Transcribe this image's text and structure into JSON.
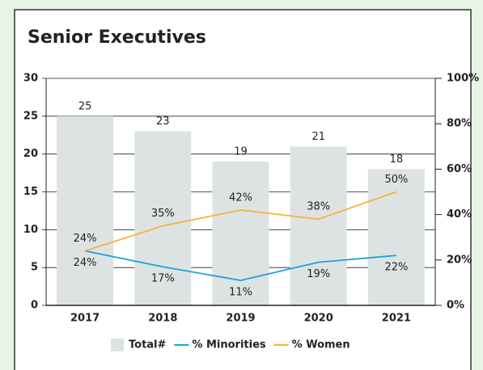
{
  "chart_data": {
    "type": "bar",
    "title": "Senior Executives",
    "categories": [
      "2017",
      "2018",
      "2019",
      "2020",
      "2021"
    ],
    "series": [
      {
        "name": "Total#",
        "type": "bar",
        "color": "#dde3e3",
        "values": [
          25,
          23,
          19,
          21,
          18
        ]
      },
      {
        "name": "% Minorities",
        "type": "line",
        "axis": "y2",
        "color": "#1aa3dd",
        "values": [
          24,
          17,
          11,
          19,
          22
        ],
        "value_labels": [
          "24%",
          "17%",
          "11%",
          "19%",
          "22%"
        ]
      },
      {
        "name": "% Women",
        "type": "line",
        "axis": "y2",
        "color": "#f5b335",
        "values": [
          24,
          35,
          42,
          38,
          50
        ],
        "value_labels": [
          "24%",
          "35%",
          "42%",
          "38%",
          "50%"
        ]
      }
    ],
    "ylim": [
      0,
      30
    ],
    "yticks": [
      0,
      5,
      10,
      15,
      20,
      25,
      30
    ],
    "y2lim": [
      0,
      100
    ],
    "y2ticks": [
      {
        "value": 0,
        "label": "0%"
      },
      {
        "value": 20,
        "label": "20%"
      },
      {
        "value": 40,
        "label": "40%"
      },
      {
        "value": 60,
        "label": "60%"
      },
      {
        "value": 80,
        "label": "80%"
      },
      {
        "value": 100,
        "label": "100%"
      }
    ],
    "grid": true,
    "legend": "bottom"
  }
}
